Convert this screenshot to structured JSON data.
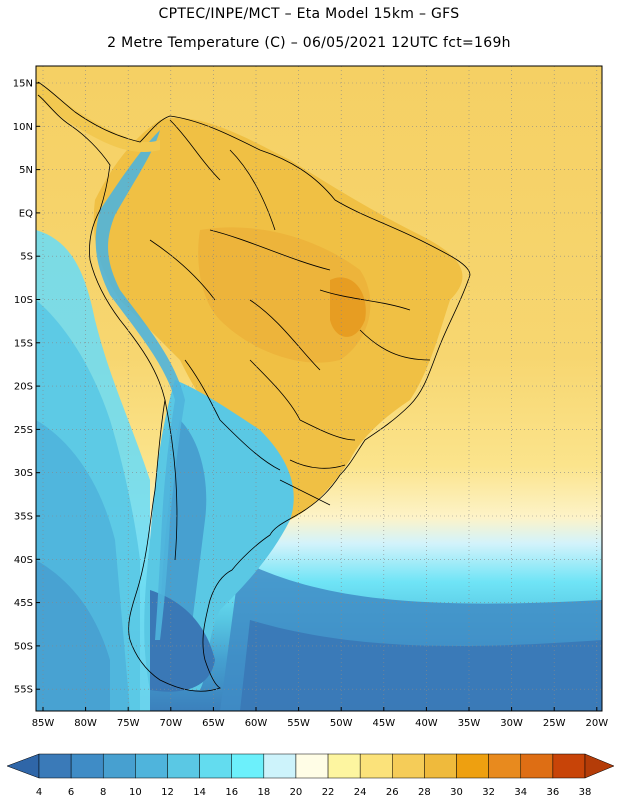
{
  "title": {
    "line1": "CPTEC/INPE/MCT –  Eta Model 15km – GFS",
    "line2": "2 Metre Temperature (C) – 06/05/2021 12UTC fct=169h"
  },
  "map": {
    "lat_labels": [
      "15N",
      "10N",
      "5N",
      "EQ",
      "5S",
      "10S",
      "15S",
      "20S",
      "25S",
      "30S",
      "35S",
      "40S",
      "45S",
      "50S",
      "55S"
    ],
    "lon_labels": [
      "85W",
      "80W",
      "75W",
      "70W",
      "65W",
      "60W",
      "55W",
      "50W",
      "45W",
      "40W",
      "35W",
      "30W",
      "25W",
      "20W"
    ]
  },
  "colorbar": {
    "labels": [
      "4",
      "6",
      "8",
      "10",
      "12",
      "14",
      "16",
      "18",
      "20",
      "22",
      "24",
      "26",
      "28",
      "30",
      "32",
      "34",
      "36",
      "38"
    ],
    "colors": [
      "#3a7ab8",
      "#3f8cc6",
      "#47a0d0",
      "#4fb4dc",
      "#5ac8e4",
      "#63dcef",
      "#6cf0fb",
      "#cdf3fb",
      "#fffde6",
      "#fdf5a0",
      "#fbe27a",
      "#f5cc58",
      "#efba3c",
      "#eea010",
      "#e88a1e",
      "#de6e14",
      "#c84408"
    ],
    "left_arrow_color": "#2f66a8",
    "right_arrow_color": "#b43c08"
  }
}
